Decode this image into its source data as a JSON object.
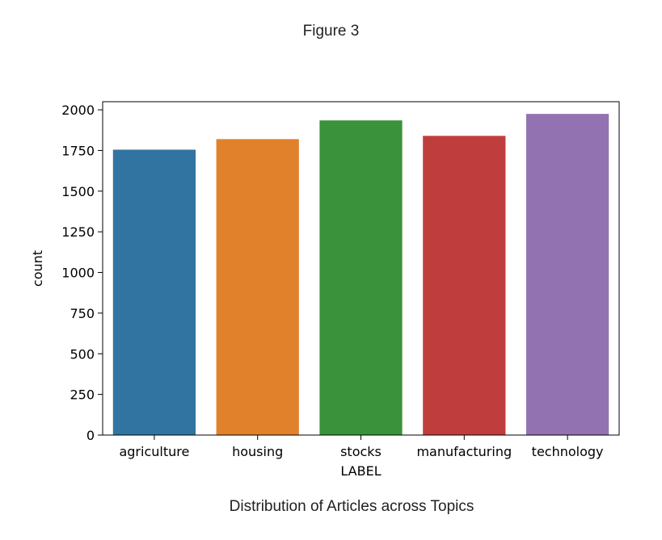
{
  "figure": {
    "title": "Figure 3",
    "caption": "Distribution of Articles across Topics"
  },
  "chart_data": {
    "type": "bar",
    "categories": [
      "agriculture",
      "housing",
      "stocks",
      "manufacturing",
      "technology"
    ],
    "values": [
      1755,
      1820,
      1935,
      1840,
      1975
    ],
    "colors": [
      "#3274a1",
      "#e1812c",
      "#3a923a",
      "#c03d3e",
      "#9372b2"
    ],
    "xlabel": "LABEL",
    "ylabel": "count",
    "ylim": [
      0,
      2050
    ],
    "yticks": [
      0,
      250,
      500,
      750,
      1000,
      1250,
      1500,
      1750,
      2000
    ],
    "grid": false
  }
}
